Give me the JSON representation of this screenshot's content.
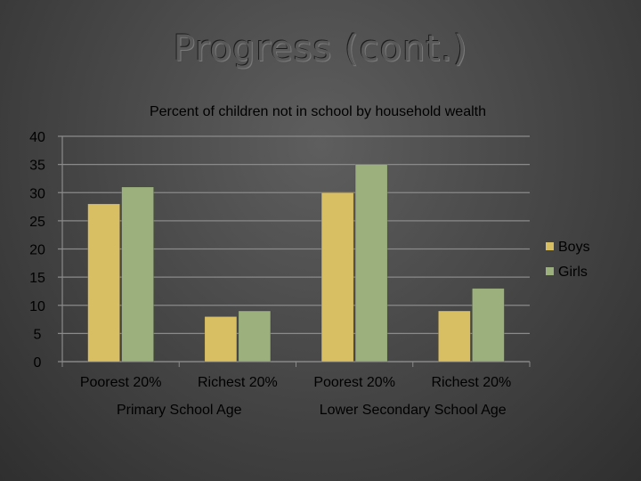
{
  "slide": {
    "title": "Progress (cont.)"
  },
  "chart_data": {
    "type": "bar",
    "title": "Percent of children not in school by household wealth",
    "categories": [
      "Poorest 20%",
      "Richest 20%",
      "Poorest 20%",
      "Richest 20%"
    ],
    "groups": [
      {
        "label": "Primary School Age",
        "span": [
          0,
          1
        ]
      },
      {
        "label": "Lower Secondary School Age",
        "span": [
          2,
          3
        ]
      }
    ],
    "series": [
      {
        "name": "Boys",
        "values": [
          28,
          8,
          30,
          9
        ],
        "color": "#d9bf63"
      },
      {
        "name": "Girls",
        "values": [
          31,
          9,
          35,
          13
        ],
        "color": "#9bb07d"
      }
    ],
    "ylim": [
      0,
      40
    ],
    "yticks": [
      0,
      5,
      10,
      15,
      20,
      25,
      30,
      35,
      40
    ],
    "grid": true,
    "legend": "right"
  }
}
